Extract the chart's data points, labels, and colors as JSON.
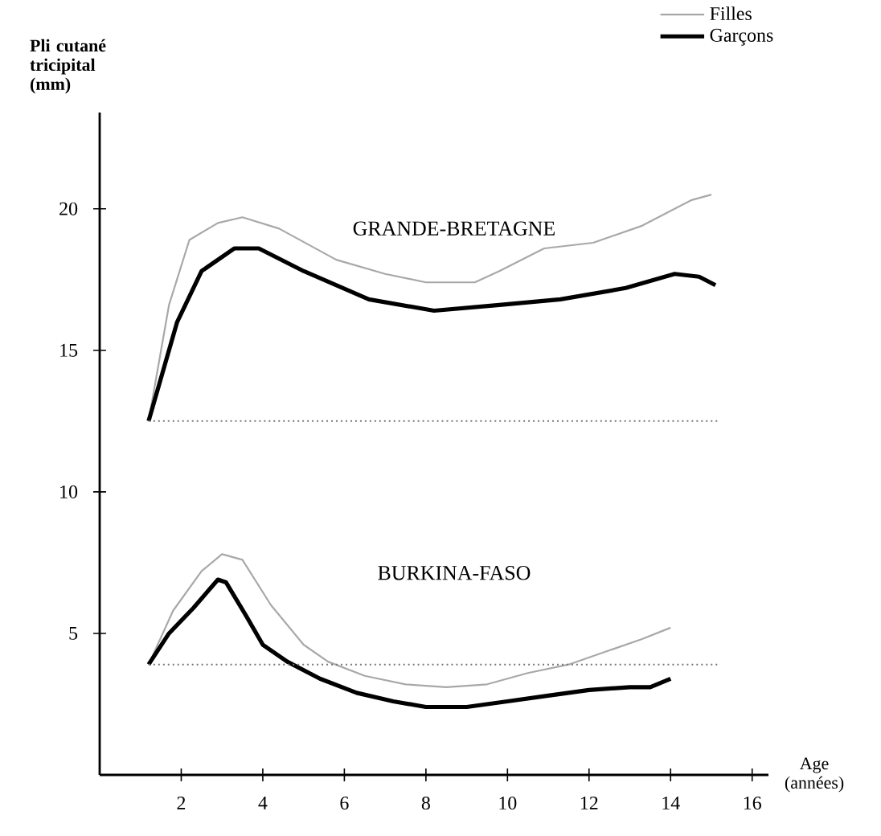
{
  "chart_data": {
    "type": "line",
    "xlabel": "Age (années)",
    "ylabel": "Pli cutané tricipital (mm)",
    "xlim": [
      0,
      16.4
    ],
    "ylim": [
      0,
      23.4
    ],
    "xticks": [
      2,
      4,
      6,
      8,
      10,
      12,
      14,
      16
    ],
    "yticks": [
      5,
      10,
      15,
      20
    ],
    "grid": false,
    "legend": "top right",
    "marker": "none",
    "series": [
      {
        "name": "Filles",
        "color": "#a8a8a8",
        "x": [
          1.2,
          1.7,
          2.2,
          2.9,
          3.5,
          4.4,
          5.8,
          7.0,
          8.0,
          9.2,
          9.8,
          10.9,
          12.1,
          13.3,
          14.5,
          15.0
        ],
        "values": [
          12.5,
          16.6,
          18.9,
          19.5,
          19.7,
          19.3,
          18.2,
          17.7,
          17.4,
          17.4,
          17.8,
          18.6,
          18.8,
          19.4,
          20.3,
          20.5
        ]
      },
      {
        "name": "Garçons",
        "color": "#000000",
        "x": [
          1.2,
          1.9,
          2.5,
          3.3,
          3.9,
          5.0,
          6.6,
          8.2,
          9.8,
          11.3,
          12.9,
          14.1,
          14.7,
          15.1
        ],
        "values": [
          12.5,
          16.0,
          17.8,
          18.6,
          18.6,
          17.8,
          16.8,
          16.4,
          16.6,
          16.8,
          17.2,
          17.7,
          17.6,
          17.3
        ]
      },
      {
        "color": "#a8a8a8",
        "x": [
          1.2,
          1.8,
          2.5,
          3.0,
          3.5,
          4.2,
          5.0,
          5.6,
          6.5,
          7.5,
          8.5,
          9.5,
          10.5,
          11.5,
          12.5,
          13.3,
          14.0
        ],
        "values": [
          3.9,
          5.8,
          7.2,
          7.8,
          7.6,
          6.0,
          4.6,
          4.0,
          3.5,
          3.2,
          3.1,
          3.2,
          3.6,
          3.9,
          4.4,
          4.8,
          5.2
        ]
      },
      {
        "color": "#000000",
        "x": [
          1.2,
          1.7,
          2.3,
          2.9,
          3.1,
          3.6,
          4.0,
          4.6,
          5.4,
          6.3,
          7.2,
          8.0,
          9.0,
          10.0,
          11.0,
          12.0,
          13.0,
          13.5,
          14.0
        ],
        "values": [
          3.9,
          5.0,
          5.9,
          6.9,
          6.8,
          5.6,
          4.6,
          4.0,
          3.4,
          2.9,
          2.6,
          2.4,
          2.4,
          2.6,
          2.8,
          3.0,
          3.1,
          3.1,
          3.4
        ]
      }
    ],
    "ref_lines": [
      {
        "axis": "y",
        "value": 12.5,
        "color": "#777777",
        "line_style": "dotted"
      },
      {
        "axis": "y",
        "value": 3.9,
        "color": "#777777",
        "line_style": "dotted"
      }
    ],
    "annotations": [
      "GRANDE-BRETAGNE",
      "BURKINA-FASO"
    ]
  }
}
